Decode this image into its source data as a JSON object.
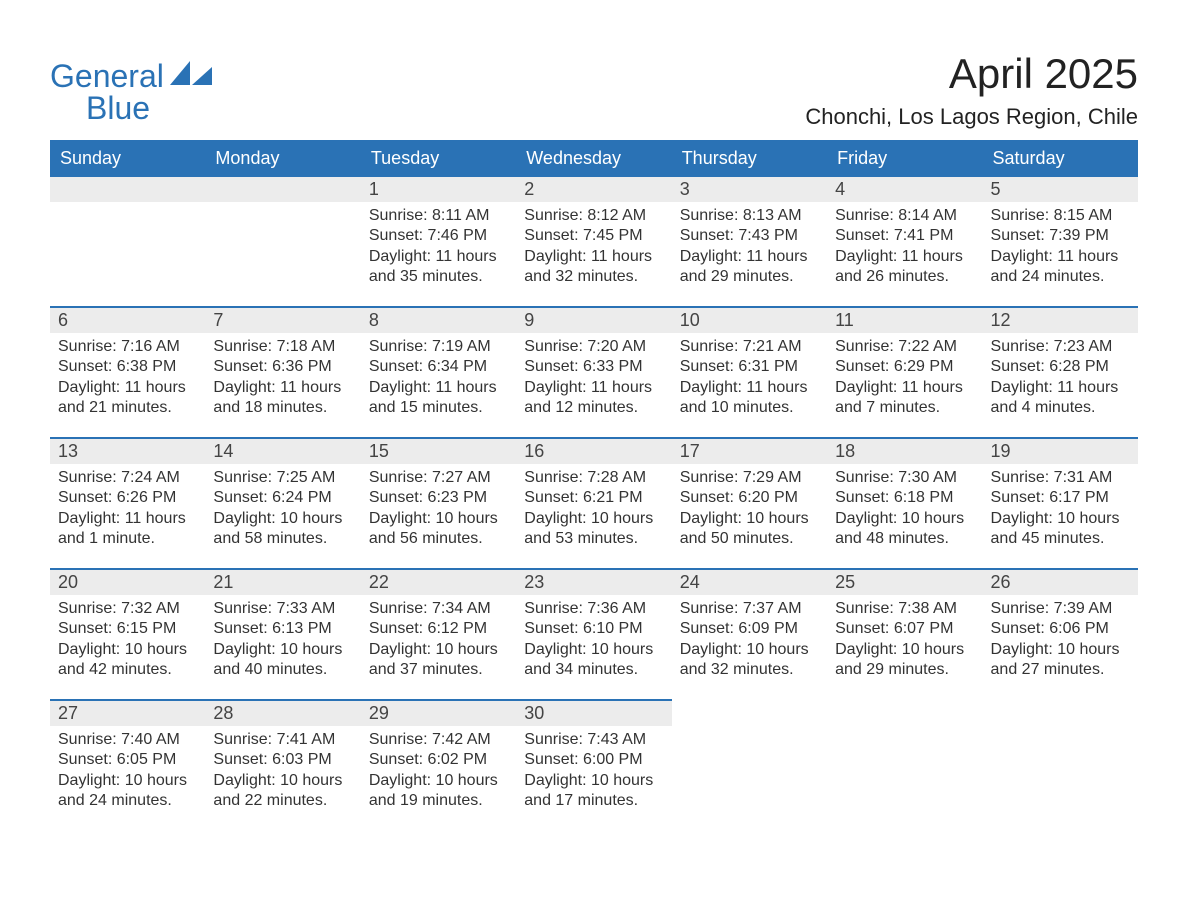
{
  "brand": {
    "line1": "General",
    "line2": "Blue",
    "text_color": "#2a72b5",
    "sail_color": "#2a72b5"
  },
  "header": {
    "title": "April 2025",
    "location": "Chonchi, Los Lagos Region, Chile"
  },
  "calendar": {
    "type": "table",
    "header_bg": "#2a72b5",
    "header_fg": "#ffffff",
    "row_divider_color": "#2a72b5",
    "daynum_bar_bg": "#ececec",
    "body_bg": "#ffffff",
    "text_color": "#333333",
    "column_widths_pct": [
      14.28,
      14.28,
      14.28,
      14.28,
      14.28,
      14.28,
      14.28
    ],
    "days": [
      "Sunday",
      "Monday",
      "Tuesday",
      "Wednesday",
      "Thursday",
      "Friday",
      "Saturday"
    ],
    "font": {
      "header_size_pt": 14,
      "daynum_size_pt": 14,
      "body_size_pt": 12
    },
    "weeks": [
      [
        null,
        null,
        {
          "n": "1",
          "sunrise": "Sunrise: 8:11 AM",
          "sunset": "Sunset: 7:46 PM",
          "dl1": "Daylight: 11 hours",
          "dl2": "and 35 minutes."
        },
        {
          "n": "2",
          "sunrise": "Sunrise: 8:12 AM",
          "sunset": "Sunset: 7:45 PM",
          "dl1": "Daylight: 11 hours",
          "dl2": "and 32 minutes."
        },
        {
          "n": "3",
          "sunrise": "Sunrise: 8:13 AM",
          "sunset": "Sunset: 7:43 PM",
          "dl1": "Daylight: 11 hours",
          "dl2": "and 29 minutes."
        },
        {
          "n": "4",
          "sunrise": "Sunrise: 8:14 AM",
          "sunset": "Sunset: 7:41 PM",
          "dl1": "Daylight: 11 hours",
          "dl2": "and 26 minutes."
        },
        {
          "n": "5",
          "sunrise": "Sunrise: 8:15 AM",
          "sunset": "Sunset: 7:39 PM",
          "dl1": "Daylight: 11 hours",
          "dl2": "and 24 minutes."
        }
      ],
      [
        {
          "n": "6",
          "sunrise": "Sunrise: 7:16 AM",
          "sunset": "Sunset: 6:38 PM",
          "dl1": "Daylight: 11 hours",
          "dl2": "and 21 minutes."
        },
        {
          "n": "7",
          "sunrise": "Sunrise: 7:18 AM",
          "sunset": "Sunset: 6:36 PM",
          "dl1": "Daylight: 11 hours",
          "dl2": "and 18 minutes."
        },
        {
          "n": "8",
          "sunrise": "Sunrise: 7:19 AM",
          "sunset": "Sunset: 6:34 PM",
          "dl1": "Daylight: 11 hours",
          "dl2": "and 15 minutes."
        },
        {
          "n": "9",
          "sunrise": "Sunrise: 7:20 AM",
          "sunset": "Sunset: 6:33 PM",
          "dl1": "Daylight: 11 hours",
          "dl2": "and 12 minutes."
        },
        {
          "n": "10",
          "sunrise": "Sunrise: 7:21 AM",
          "sunset": "Sunset: 6:31 PM",
          "dl1": "Daylight: 11 hours",
          "dl2": "and 10 minutes."
        },
        {
          "n": "11",
          "sunrise": "Sunrise: 7:22 AM",
          "sunset": "Sunset: 6:29 PM",
          "dl1": "Daylight: 11 hours",
          "dl2": "and 7 minutes."
        },
        {
          "n": "12",
          "sunrise": "Sunrise: 7:23 AM",
          "sunset": "Sunset: 6:28 PM",
          "dl1": "Daylight: 11 hours",
          "dl2": "and 4 minutes."
        }
      ],
      [
        {
          "n": "13",
          "sunrise": "Sunrise: 7:24 AM",
          "sunset": "Sunset: 6:26 PM",
          "dl1": "Daylight: 11 hours",
          "dl2": "and 1 minute."
        },
        {
          "n": "14",
          "sunrise": "Sunrise: 7:25 AM",
          "sunset": "Sunset: 6:24 PM",
          "dl1": "Daylight: 10 hours",
          "dl2": "and 58 minutes."
        },
        {
          "n": "15",
          "sunrise": "Sunrise: 7:27 AM",
          "sunset": "Sunset: 6:23 PM",
          "dl1": "Daylight: 10 hours",
          "dl2": "and 56 minutes."
        },
        {
          "n": "16",
          "sunrise": "Sunrise: 7:28 AM",
          "sunset": "Sunset: 6:21 PM",
          "dl1": "Daylight: 10 hours",
          "dl2": "and 53 minutes."
        },
        {
          "n": "17",
          "sunrise": "Sunrise: 7:29 AM",
          "sunset": "Sunset: 6:20 PM",
          "dl1": "Daylight: 10 hours",
          "dl2": "and 50 minutes."
        },
        {
          "n": "18",
          "sunrise": "Sunrise: 7:30 AM",
          "sunset": "Sunset: 6:18 PM",
          "dl1": "Daylight: 10 hours",
          "dl2": "and 48 minutes."
        },
        {
          "n": "19",
          "sunrise": "Sunrise: 7:31 AM",
          "sunset": "Sunset: 6:17 PM",
          "dl1": "Daylight: 10 hours",
          "dl2": "and 45 minutes."
        }
      ],
      [
        {
          "n": "20",
          "sunrise": "Sunrise: 7:32 AM",
          "sunset": "Sunset: 6:15 PM",
          "dl1": "Daylight: 10 hours",
          "dl2": "and 42 minutes."
        },
        {
          "n": "21",
          "sunrise": "Sunrise: 7:33 AM",
          "sunset": "Sunset: 6:13 PM",
          "dl1": "Daylight: 10 hours",
          "dl2": "and 40 minutes."
        },
        {
          "n": "22",
          "sunrise": "Sunrise: 7:34 AM",
          "sunset": "Sunset: 6:12 PM",
          "dl1": "Daylight: 10 hours",
          "dl2": "and 37 minutes."
        },
        {
          "n": "23",
          "sunrise": "Sunrise: 7:36 AM",
          "sunset": "Sunset: 6:10 PM",
          "dl1": "Daylight: 10 hours",
          "dl2": "and 34 minutes."
        },
        {
          "n": "24",
          "sunrise": "Sunrise: 7:37 AM",
          "sunset": "Sunset: 6:09 PM",
          "dl1": "Daylight: 10 hours",
          "dl2": "and 32 minutes."
        },
        {
          "n": "25",
          "sunrise": "Sunrise: 7:38 AM",
          "sunset": "Sunset: 6:07 PM",
          "dl1": "Daylight: 10 hours",
          "dl2": "and 29 minutes."
        },
        {
          "n": "26",
          "sunrise": "Sunrise: 7:39 AM",
          "sunset": "Sunset: 6:06 PM",
          "dl1": "Daylight: 10 hours",
          "dl2": "and 27 minutes."
        }
      ],
      [
        {
          "n": "27",
          "sunrise": "Sunrise: 7:40 AM",
          "sunset": "Sunset: 6:05 PM",
          "dl1": "Daylight: 10 hours",
          "dl2": "and 24 minutes."
        },
        {
          "n": "28",
          "sunrise": "Sunrise: 7:41 AM",
          "sunset": "Sunset: 6:03 PM",
          "dl1": "Daylight: 10 hours",
          "dl2": "and 22 minutes."
        },
        {
          "n": "29",
          "sunrise": "Sunrise: 7:42 AM",
          "sunset": "Sunset: 6:02 PM",
          "dl1": "Daylight: 10 hours",
          "dl2": "and 19 minutes."
        },
        {
          "n": "30",
          "sunrise": "Sunrise: 7:43 AM",
          "sunset": "Sunset: 6:00 PM",
          "dl1": "Daylight: 10 hours",
          "dl2": "and 17 minutes."
        },
        null,
        null,
        null
      ]
    ]
  }
}
